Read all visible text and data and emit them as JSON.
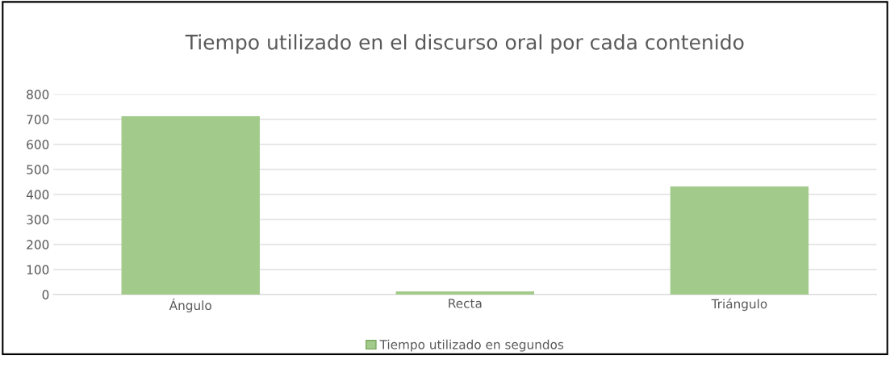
{
  "chart_data": {
    "type": "bar",
    "title": "Tiempo utilizado en el discurso oral por cada contenido",
    "categories": [
      "Ángulo",
      "Recta",
      "Triángulo"
    ],
    "series": [
      {
        "name": "Tiempo utilizado en segundos",
        "color": "#a2cb8b",
        "values": [
          710,
          10,
          430
        ]
      }
    ],
    "ylim": [
      0,
      800
    ],
    "yticks": [
      0,
      100,
      200,
      300,
      400,
      500,
      600,
      700,
      800
    ],
    "grid": "y",
    "legend": "bottom"
  }
}
